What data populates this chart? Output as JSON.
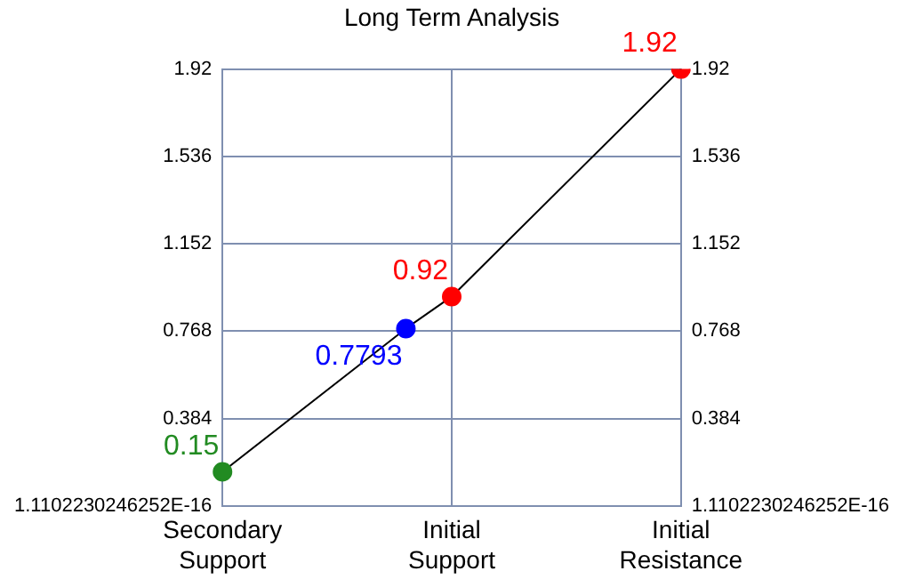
{
  "chart_data": {
    "type": "line",
    "title": "Long Term Analysis",
    "categories": [
      "Secondary Support",
      null,
      null,
      null,
      null,
      "Initial Support",
      null,
      null,
      null,
      null,
      "Initial Resistance"
    ],
    "series": [
      {
        "color": "#000000",
        "colors": [
          "#228b22",
          null,
          null,
          null,
          "#0000ff",
          "#ff0000",
          null,
          null,
          null,
          null,
          "#ff0000"
        ],
        "values": [
          0.15,
          null,
          null,
          null,
          0.7793,
          0.92,
          null,
          null,
          null,
          null,
          1.92
        ]
      }
    ],
    "ylim": [
      0,
      1.92
    ],
    "yticks": [
      {
        "value": 0,
        "label": "1.1102230246252E-16"
      },
      0.384,
      0.768,
      1.152,
      1.536,
      1.92
    ],
    "y2lim": [
      0,
      1.92
    ],
    "y2ticks": [
      {
        "value": 0,
        "label": "1.1102230246252E-16"
      },
      0.384,
      0.768,
      1.152,
      1.536,
      1.92
    ],
    "grid": true,
    "legend": false,
    "marker": "circle",
    "line_style": "solid",
    "data_labels": true
  }
}
